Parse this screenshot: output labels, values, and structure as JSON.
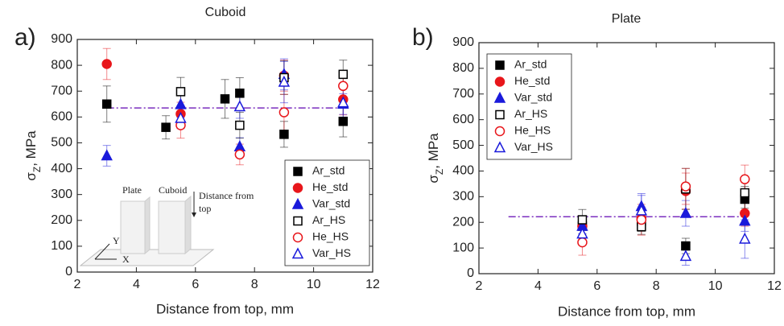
{
  "chart_data": [
    {
      "type": "scatter",
      "title": "Cuboid",
      "panel_label": "a)",
      "xlabel": "Distance from top, mm",
      "ylabel": [
        "σ",
        "Z",
        ", MPa"
      ],
      "xlim": [
        2,
        12
      ],
      "xticks": [
        2,
        4,
        6,
        8,
        10,
        12
      ],
      "ylim": [
        0,
        900
      ],
      "yticks": [
        0,
        100,
        200,
        300,
        400,
        500,
        600,
        700,
        800,
        900
      ],
      "legend": "lower right",
      "reference_line": {
        "y": 635,
        "x": [
          3,
          11
        ],
        "color": "#7b2fbf"
      },
      "inset": {
        "labels": [
          "Plate",
          "Cuboid",
          "Y",
          "X"
        ],
        "note": [
          "Distance from",
          "top"
        ]
      },
      "series": [
        {
          "name": "Ar_std",
          "color": "#000000",
          "marker": "square",
          "filled": true,
          "x": [
            3,
            5,
            7,
            7.5,
            9,
            11
          ],
          "values": [
            650,
            560,
            670,
            692,
            533,
            583
          ],
          "errors": [
            70,
            45,
            75,
            60,
            50,
            60
          ]
        },
        {
          "name": "He_std",
          "color": "#e8161b",
          "marker": "circle",
          "filled": true,
          "x": [
            3,
            5.5,
            9,
            11
          ],
          "values": [
            805,
            612,
            760,
            668
          ],
          "errors": [
            60,
            45,
            60,
            60
          ]
        },
        {
          "name": "Var_std",
          "color": "#1a1adb",
          "marker": "triangle",
          "filled": true,
          "x": [
            3,
            5.5,
            7.5,
            9,
            11
          ],
          "values": [
            450,
            648,
            485,
            765,
            650
          ],
          "errors": [
            40,
            50,
            35,
            60,
            40
          ]
        },
        {
          "name": "Ar_HS",
          "color": "#000000",
          "marker": "square",
          "filled": false,
          "x": [
            5.5,
            7.5,
            9,
            11
          ],
          "values": [
            698,
            568,
            752,
            765
          ],
          "errors": [
            55,
            50,
            65,
            55
          ]
        },
        {
          "name": "He_HS",
          "color": "#e8161b",
          "marker": "circle",
          "filled": false,
          "x": [
            5.5,
            7.5,
            9,
            11
          ],
          "values": [
            568,
            455,
            618,
            720
          ],
          "errors": [
            50,
            40,
            70,
            60
          ]
        },
        {
          "name": "Var_HS",
          "color": "#1a1adb",
          "marker": "triangle",
          "filled": false,
          "x": [
            5.5,
            7.5,
            9,
            11
          ],
          "values": [
            595,
            640,
            735,
            655
          ],
          "errors": [
            40,
            45,
            80,
            55
          ]
        }
      ]
    },
    {
      "type": "scatter",
      "title": "Plate",
      "panel_label": "b)",
      "xlabel": "Distance from top, mm",
      "ylabel": [
        "σ",
        "Z",
        ", MPa"
      ],
      "xlim": [
        2,
        12
      ],
      "xticks": [
        2,
        4,
        6,
        8,
        10,
        12
      ],
      "ylim": [
        0,
        900
      ],
      "yticks": [
        0,
        100,
        200,
        300,
        400,
        500,
        600,
        700,
        800,
        900
      ],
      "legend": "upper left",
      "reference_line": {
        "y": 222,
        "x": [
          3,
          11
        ],
        "color": "#7b2fbf"
      },
      "series": [
        {
          "name": "Ar_std",
          "color": "#000000",
          "marker": "square",
          "filled": true,
          "x": [
            5.5,
            7.5,
            9,
            11
          ],
          "values": [
            185,
            205,
            108,
            290
          ],
          "errors": [
            30,
            40,
            30,
            50
          ]
        },
        {
          "name": "He_std",
          "color": "#e8161b",
          "marker": "circle",
          "filled": true,
          "x": [
            5.5,
            7.5,
            9,
            11
          ],
          "values": [
            185,
            215,
            322,
            235
          ],
          "errors": [
            40,
            45,
            70,
            50
          ]
        },
        {
          "name": "Var_std",
          "color": "#1a1adb",
          "marker": "triangle",
          "filled": true,
          "x": [
            5.5,
            7.5,
            9,
            11
          ],
          "values": [
            185,
            262,
            235,
            205
          ],
          "errors": [
            30,
            50,
            50,
            40
          ]
        },
        {
          "name": "Ar_HS",
          "color": "#000000",
          "marker": "square",
          "filled": false,
          "x": [
            5.5,
            7.5,
            9,
            11
          ],
          "values": [
            210,
            183,
            330,
            315
          ],
          "errors": [
            40,
            30,
            80,
            60
          ]
        },
        {
          "name": "He_HS",
          "color": "#e8161b",
          "marker": "circle",
          "filled": false,
          "x": [
            5.5,
            7.5,
            9,
            11
          ],
          "values": [
            122,
            210,
            340,
            368
          ],
          "errors": [
            50,
            60,
            70,
            55
          ]
        },
        {
          "name": "Var_HS",
          "color": "#1a1adb",
          "marker": "triangle",
          "filled": false,
          "x": [
            5.5,
            7.5,
            9,
            11
          ],
          "values": [
            155,
            245,
            68,
            135
          ],
          "errors": [
            40,
            60,
            35,
            75
          ]
        }
      ]
    }
  ]
}
